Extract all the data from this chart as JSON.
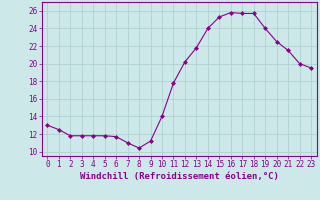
{
  "x": [
    0,
    1,
    2,
    3,
    4,
    5,
    6,
    7,
    8,
    9,
    10,
    11,
    12,
    13,
    14,
    15,
    16,
    17,
    18,
    19,
    20,
    21,
    22,
    23
  ],
  "y": [
    13.0,
    12.5,
    11.8,
    11.8,
    11.8,
    11.8,
    11.7,
    11.0,
    10.4,
    11.2,
    14.0,
    17.8,
    20.2,
    21.8,
    24.0,
    25.3,
    25.8,
    25.7,
    25.7,
    24.0,
    22.5,
    21.5,
    20.0,
    19.5
  ],
  "line_color": "#8B008B",
  "marker": "D",
  "marker_size": 2,
  "bg_color": "#cce8e8",
  "grid_color": "#aacece",
  "xlabel": "Windchill (Refroidissement éolien,°C)",
  "xlabel_color": "#8B008B",
  "xlabel_fontsize": 6.5,
  "ylabel_ticks": [
    10,
    12,
    14,
    16,
    18,
    20,
    22,
    24,
    26
  ],
  "ylim": [
    9.5,
    27.0
  ],
  "xlim": [
    -0.5,
    23.5
  ],
  "tick_fontsize": 5.5,
  "tick_color": "#8B008B",
  "spine_color": "#8B008B"
}
